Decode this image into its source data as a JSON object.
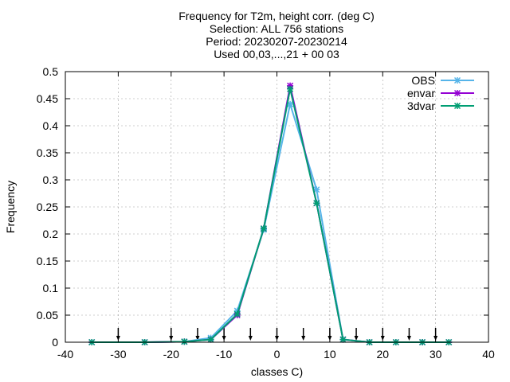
{
  "chart_data": {
    "type": "line",
    "title_lines": [
      "Frequency  for T2m, height corr. (deg C)",
      "Selection: ALL    756 stations",
      "Period: 20230207-20230214",
      "Used 00,03,...,21 + 00 03"
    ],
    "xlabel": "classes C)",
    "ylabel": "Frequency",
    "xlim": [
      -40,
      40
    ],
    "ylim": [
      0,
      0.5
    ],
    "xticks": [
      -40,
      -30,
      -20,
      -10,
      0,
      10,
      20,
      30,
      40
    ],
    "yticks": [
      0,
      0.05,
      0.1,
      0.15,
      0.2,
      0.25,
      0.3,
      0.35,
      0.4,
      0.45,
      0.5
    ],
    "ytick_labels": [
      "0",
      "0.05",
      "0.1",
      "0.15",
      "0.2",
      "0.25",
      "0.3",
      "0.35",
      "0.4",
      "0.45",
      "0.5"
    ],
    "grid": true,
    "legend_position": "top-right",
    "class_boundaries": [
      -30,
      -20,
      -15,
      -10,
      -5,
      0,
      5,
      10,
      15,
      20,
      25,
      30
    ],
    "series": [
      {
        "name": "OBS",
        "color": "#56b4e9",
        "marker": "cross",
        "x": [
          -35,
          -25,
          -17.5,
          -12.5,
          -7.5,
          -2.5,
          2.5,
          7.5,
          12.5,
          17.5,
          22.5,
          27.5,
          32.5
        ],
        "y": [
          0.0,
          0.0,
          0.001,
          0.008,
          0.058,
          0.208,
          0.44,
          0.282,
          0.005,
          0.0,
          0.0,
          0.0,
          0.0
        ]
      },
      {
        "name": "envar",
        "color": "#9400d3",
        "marker": "cross",
        "x": [
          -35,
          -25,
          -17.5,
          -12.5,
          -7.5,
          -2.5,
          2.5,
          7.5,
          12.5,
          17.5,
          22.5,
          27.5,
          32.5
        ],
        "y": [
          0.0,
          0.0,
          0.001,
          0.005,
          0.05,
          0.21,
          0.474,
          0.257,
          0.005,
          0.0,
          0.0,
          0.0,
          0.0
        ]
      },
      {
        "name": "3dvar",
        "color": "#009e73",
        "marker": "cross",
        "x": [
          -35,
          -25,
          -17.5,
          -12.5,
          -7.5,
          -2.5,
          2.5,
          7.5,
          12.5,
          17.5,
          22.5,
          27.5,
          32.5
        ],
        "y": [
          0.0,
          0.0,
          0.001,
          0.005,
          0.052,
          0.21,
          0.468,
          0.257,
          0.005,
          0.0,
          0.0,
          0.0,
          0.0
        ]
      }
    ]
  }
}
